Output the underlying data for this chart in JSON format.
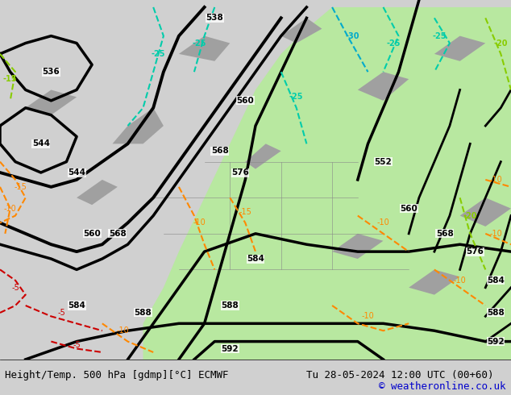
{
  "title_left": "Height/Temp. 500 hPa [gdmp][°C] ECMWF",
  "title_right": "Tu 28-05-2024 12:00 UTC (00+60)",
  "copyright": "© weatheronline.co.uk",
  "bg_color": "#d0d0d0",
  "map_bg": "#c8c8c8",
  "green_fill": "#b8e8a0",
  "footer_bg": "#ffffff",
  "footer_text_color": "#000000",
  "copyright_color": "#0000cc",
  "title_fontsize": 9,
  "copyright_fontsize": 9,
  "fig_width": 6.34,
  "fig_height": 4.9,
  "dpi": 100
}
